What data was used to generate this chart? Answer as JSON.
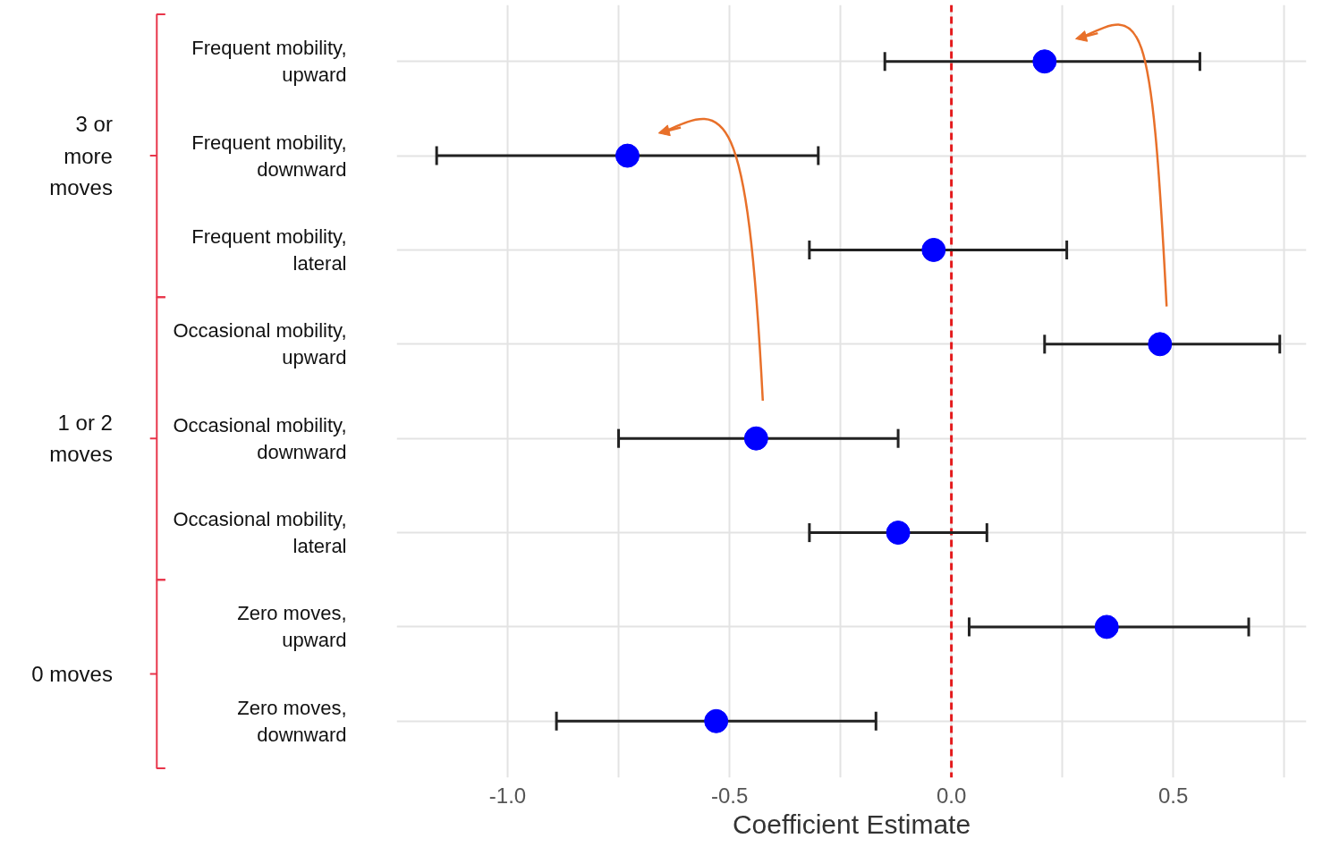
{
  "chart_data": {
    "type": "scatter",
    "orientation": "horizontal",
    "xlabel": "Coefficient Estimate",
    "categories": [
      "Frequent mobility, upward",
      "Frequent mobility, downward",
      "Frequent mobility, lateral",
      "Occasional mobility, upward",
      "Occasional mobility, downward",
      "Occasional mobility, lateral",
      "Zero moves, upward",
      "Zero moves, downward"
    ],
    "series": [
      {
        "color": "#0000ff",
        "values": [
          0.21,
          -0.73,
          -0.04,
          0.47,
          -0.44,
          -0.12,
          0.35,
          -0.53
        ],
        "errors": [
          [
            -0.15,
            0.56
          ],
          [
            -1.16,
            -0.3
          ],
          [
            -0.32,
            0.26
          ],
          [
            0.21,
            0.74
          ],
          [
            -0.75,
            -0.12
          ],
          [
            -0.32,
            0.08
          ],
          [
            0.04,
            0.67
          ],
          [
            -0.89,
            -0.17
          ]
        ]
      }
    ],
    "xlim": [
      -1.25,
      0.8
    ],
    "xticks": [
      {
        "value": -1.0,
        "label": "-1.0"
      },
      {
        "value": -0.5,
        "label": "-0.5"
      },
      {
        "value": 0.0,
        "label": "0.0"
      },
      {
        "value": 0.5,
        "label": "0.5"
      }
    ],
    "ref_lines": [
      {
        "axis": "x",
        "value": 0,
        "color": "#e41a1c",
        "line_style": "dashed"
      }
    ],
    "annotations": [
      "3 or more moves",
      "1 or 2 moves",
      "0 moves"
    ],
    "grid": true,
    "marker": "circle"
  }
}
